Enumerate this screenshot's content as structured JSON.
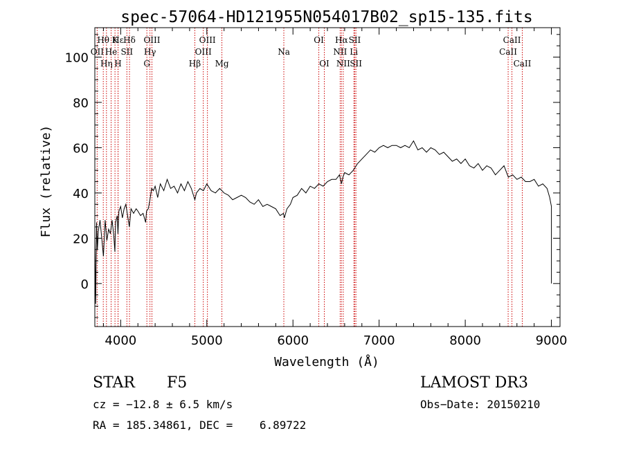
{
  "chart_data": {
    "type": "line",
    "title": "spec-57064-HD121955N054017B02_sp15-135.fits",
    "xlabel": "Wavelength (Å)",
    "ylabel": "Flux (relative)",
    "xlim": [
      3700,
      9100
    ],
    "ylim": [
      -19,
      113
    ],
    "xticks": [
      4000,
      5000,
      6000,
      7000,
      8000,
      9000
    ],
    "yticks": [
      0,
      20,
      40,
      60,
      80,
      100
    ],
    "grid": false,
    "line_color": "#000000",
    "marker_color": "#cc0000",
    "series": [
      {
        "x": [
          3700,
          3710,
          3720,
          3730,
          3740,
          3760,
          3780,
          3800,
          3820,
          3840,
          3860,
          3880,
          3900,
          3920,
          3933,
          3940,
          3960,
          3968,
          3980,
          4000,
          4020,
          4040,
          4060,
          4080,
          4101,
          4120,
          4150,
          4180,
          4200,
          4230,
          4260,
          4290,
          4300,
          4320,
          4340,
          4360,
          4380,
          4400,
          4430,
          4460,
          4500,
          4540,
          4580,
          4620,
          4660,
          4700,
          4740,
          4780,
          4820,
          4861,
          4880,
          4920,
          4960,
          5000,
          5050,
          5100,
          5150,
          5200,
          5250,
          5300,
          5350,
          5400,
          5450,
          5500,
          5550,
          5600,
          5650,
          5700,
          5750,
          5800,
          5850,
          5890,
          5900,
          5930,
          5970,
          6000,
          6050,
          6100,
          6150,
          6200,
          6250,
          6300,
          6350,
          6400,
          6450,
          6500,
          6540,
          6563,
          6580,
          6600,
          6650,
          6700,
          6750,
          6800,
          6850,
          6900,
          6950,
          7000,
          7050,
          7100,
          7150,
          7200,
          7250,
          7300,
          7350,
          7400,
          7450,
          7500,
          7550,
          7600,
          7650,
          7700,
          7750,
          7800,
          7850,
          7900,
          7950,
          8000,
          8050,
          8100,
          8150,
          8200,
          8250,
          8300,
          8350,
          8400,
          8450,
          8500,
          8550,
          8600,
          8650,
          8700,
          8750,
          8800,
          8850,
          8900,
          8950,
          8980,
          9000,
          9000
        ],
        "y": [
          20,
          -9,
          27,
          15,
          23,
          28,
          20,
          12,
          28,
          19,
          24,
          22,
          28,
          21,
          14,
          27,
          30,
          22,
          32,
          34,
          29,
          33,
          35,
          30,
          25,
          33,
          31,
          33,
          32,
          30,
          31,
          27,
          32,
          33,
          37,
          42,
          41,
          43,
          38,
          44,
          41,
          46,
          42,
          43,
          40,
          44,
          41,
          45,
          42,
          37,
          40,
          42,
          41,
          44,
          41,
          40,
          42,
          40,
          39,
          37,
          38,
          39,
          38,
          36,
          35,
          37,
          34,
          35,
          34,
          33,
          30,
          31,
          29,
          33,
          35,
          38,
          39,
          42,
          40,
          43,
          42,
          44,
          43,
          45,
          46,
          46,
          48,
          44,
          47,
          49,
          48,
          50,
          53,
          55,
          57,
          59,
          58,
          60,
          61,
          60,
          61,
          61,
          60,
          61,
          60,
          63,
          59,
          60,
          58,
          60,
          59,
          57,
          58,
          56,
          54,
          55,
          53,
          55,
          52,
          51,
          53,
          50,
          52,
          51,
          48,
          50,
          52,
          47,
          48,
          46,
          47,
          45,
          45,
          46,
          43,
          44,
          42,
          38,
          34,
          0
        ]
      }
    ],
    "lines": [
      {
        "name": "OII",
        "x": 3727,
        "row": 2
      },
      {
        "name": "Hθ",
        "x": 3798,
        "row": 1
      },
      {
        "name": "Hη",
        "x": 3835,
        "row": 3
      },
      {
        "name": "He",
        "x": 3889,
        "row": 2
      },
      {
        "name": "K",
        "x": 3934,
        "row": 1
      },
      {
        "name": "H",
        "x": 3969,
        "row": 3
      },
      {
        "name": "Hε",
        "x": 3970,
        "row": 0
      },
      {
        "name": "Hδ",
        "x": 4102,
        "row": 1
      },
      {
        "name": "SII",
        "x": 4072,
        "row": 2
      },
      {
        "name": "OIII",
        "x": 4363,
        "row": 1
      },
      {
        "name": "Hγ",
        "x": 4340,
        "row": 2
      },
      {
        "name": "G",
        "x": 4304,
        "row": 3
      },
      {
        "name": "Hβ",
        "x": 4861,
        "row": 3
      },
      {
        "name": "OIII",
        "x": 5007,
        "row": 1
      },
      {
        "name": "OIII",
        "x": 4959,
        "row": 2
      },
      {
        "name": "Mg",
        "x": 5175,
        "row": 3
      },
      {
        "name": "Na",
        "x": 5894,
        "row": 2
      },
      {
        "name": "OI",
        "x": 6300,
        "row": 1
      },
      {
        "name": "OI",
        "x": 6364,
        "row": 3
      },
      {
        "name": "Hα",
        "x": 6563,
        "row": 1
      },
      {
        "name": "NII",
        "x": 6548,
        "row": 2
      },
      {
        "name": "NII",
        "x": 6584,
        "row": 3
      },
      {
        "name": "SII",
        "x": 6717,
        "row": 1
      },
      {
        "name": "Li",
        "x": 6707,
        "row": 2
      },
      {
        "name": "SII",
        "x": 6731,
        "row": 3
      },
      {
        "name": "CaII",
        "x": 8542,
        "row": 1
      },
      {
        "name": "CaII",
        "x": 8498,
        "row": 2
      },
      {
        "name": "CaII",
        "x": 8662,
        "row": 3
      }
    ]
  },
  "info": {
    "object_type": "STAR",
    "subclass": "F5",
    "survey": "LAMOST DR3",
    "cz": "cz = −12.8 ± 6.5 km/s",
    "obs_date": "Obs−Date: 20150210",
    "coords": "RA = 185.34861, DEC =    6.89722"
  }
}
